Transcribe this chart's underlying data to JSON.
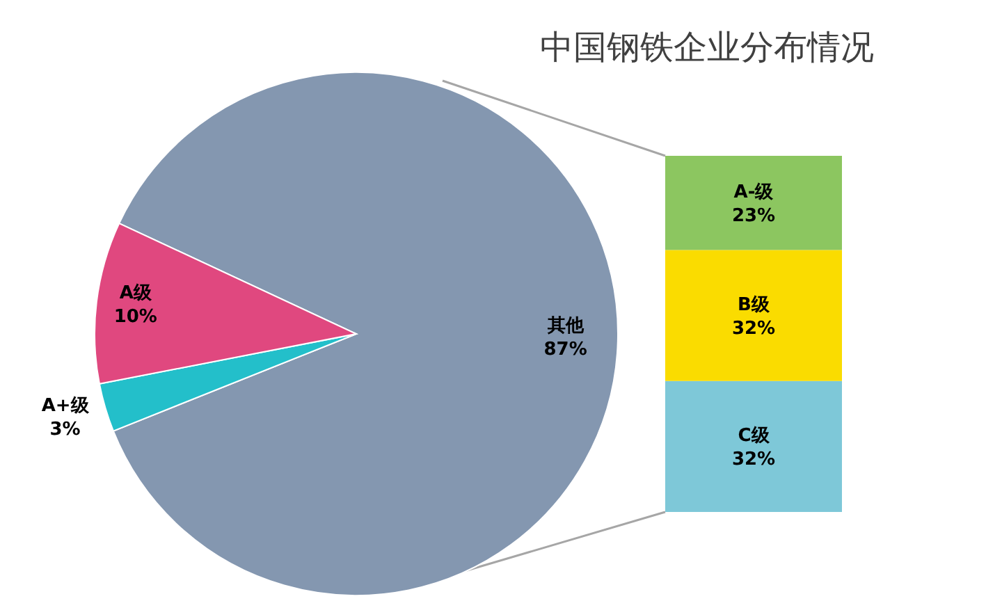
{
  "chart_data": [
    {
      "type": "pie",
      "title": "中国钢铁企业分布情况",
      "categories": [
        "其他",
        "A+级",
        "A级"
      ],
      "values": [
        87,
        3,
        10
      ],
      "colors": [
        "#8497b0",
        "#23bfca",
        "#e0487f"
      ],
      "value_labels": [
        "87%",
        "3%",
        "10%"
      ]
    },
    {
      "type": "bar",
      "stacked": true,
      "categories": [
        null
      ],
      "series": [
        {
          "name": "C级",
          "color": "#7ec8d8",
          "values": [
            32
          ],
          "value_labels": [
            "32%"
          ]
        },
        {
          "name": "B级",
          "color": "#fadc00",
          "values": [
            32
          ],
          "value_labels": [
            "32%"
          ]
        },
        {
          "name": "A-级",
          "color": "#8cc660",
          "values": [
            23
          ],
          "value_labels": [
            "23%"
          ]
        }
      ]
    }
  ]
}
